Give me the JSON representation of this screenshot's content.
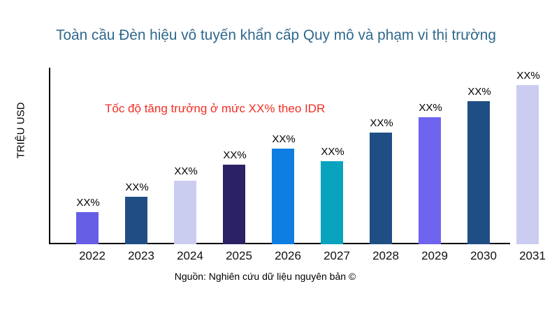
{
  "chart_data": {
    "type": "bar",
    "title": "Toàn cầu Đèn hiệu vô tuyến khẩn cấp Quy mô và phạm vi thị trường",
    "title_color": "#2f688c",
    "ylabel": "TRIỆU USD",
    "xlabel": "",
    "categories": [
      "2022",
      "2023",
      "2024",
      "2025",
      "2026",
      "2027",
      "2028",
      "2029",
      "2030",
      "2031"
    ],
    "values": [
      20,
      30,
      40,
      50,
      60,
      52,
      70,
      80,
      90,
      100
    ],
    "bar_labels": [
      "XX%",
      "XX%",
      "XX%",
      "XX%",
      "XX%",
      "XX%",
      "XX%",
      "XX%",
      "XX%",
      "XX%"
    ],
    "bar_colors": [
      "#675ee6",
      "#1f4e84",
      "#cacdf0",
      "#2a2264",
      "#0f7de2",
      "#09a3bd",
      "#1f4e84",
      "#6e64f0",
      "#1f4e84",
      "#cacdf0"
    ],
    "ylim": [
      0,
      100
    ],
    "grid": false,
    "legend": false,
    "annotation": {
      "text": "Tốc độ tăng trưởng ở mức XX% theo IDR",
      "color": "#ef2f23"
    },
    "source": "Nguồn: Nghiên cứu dữ liệu nguyên bản ©"
  }
}
